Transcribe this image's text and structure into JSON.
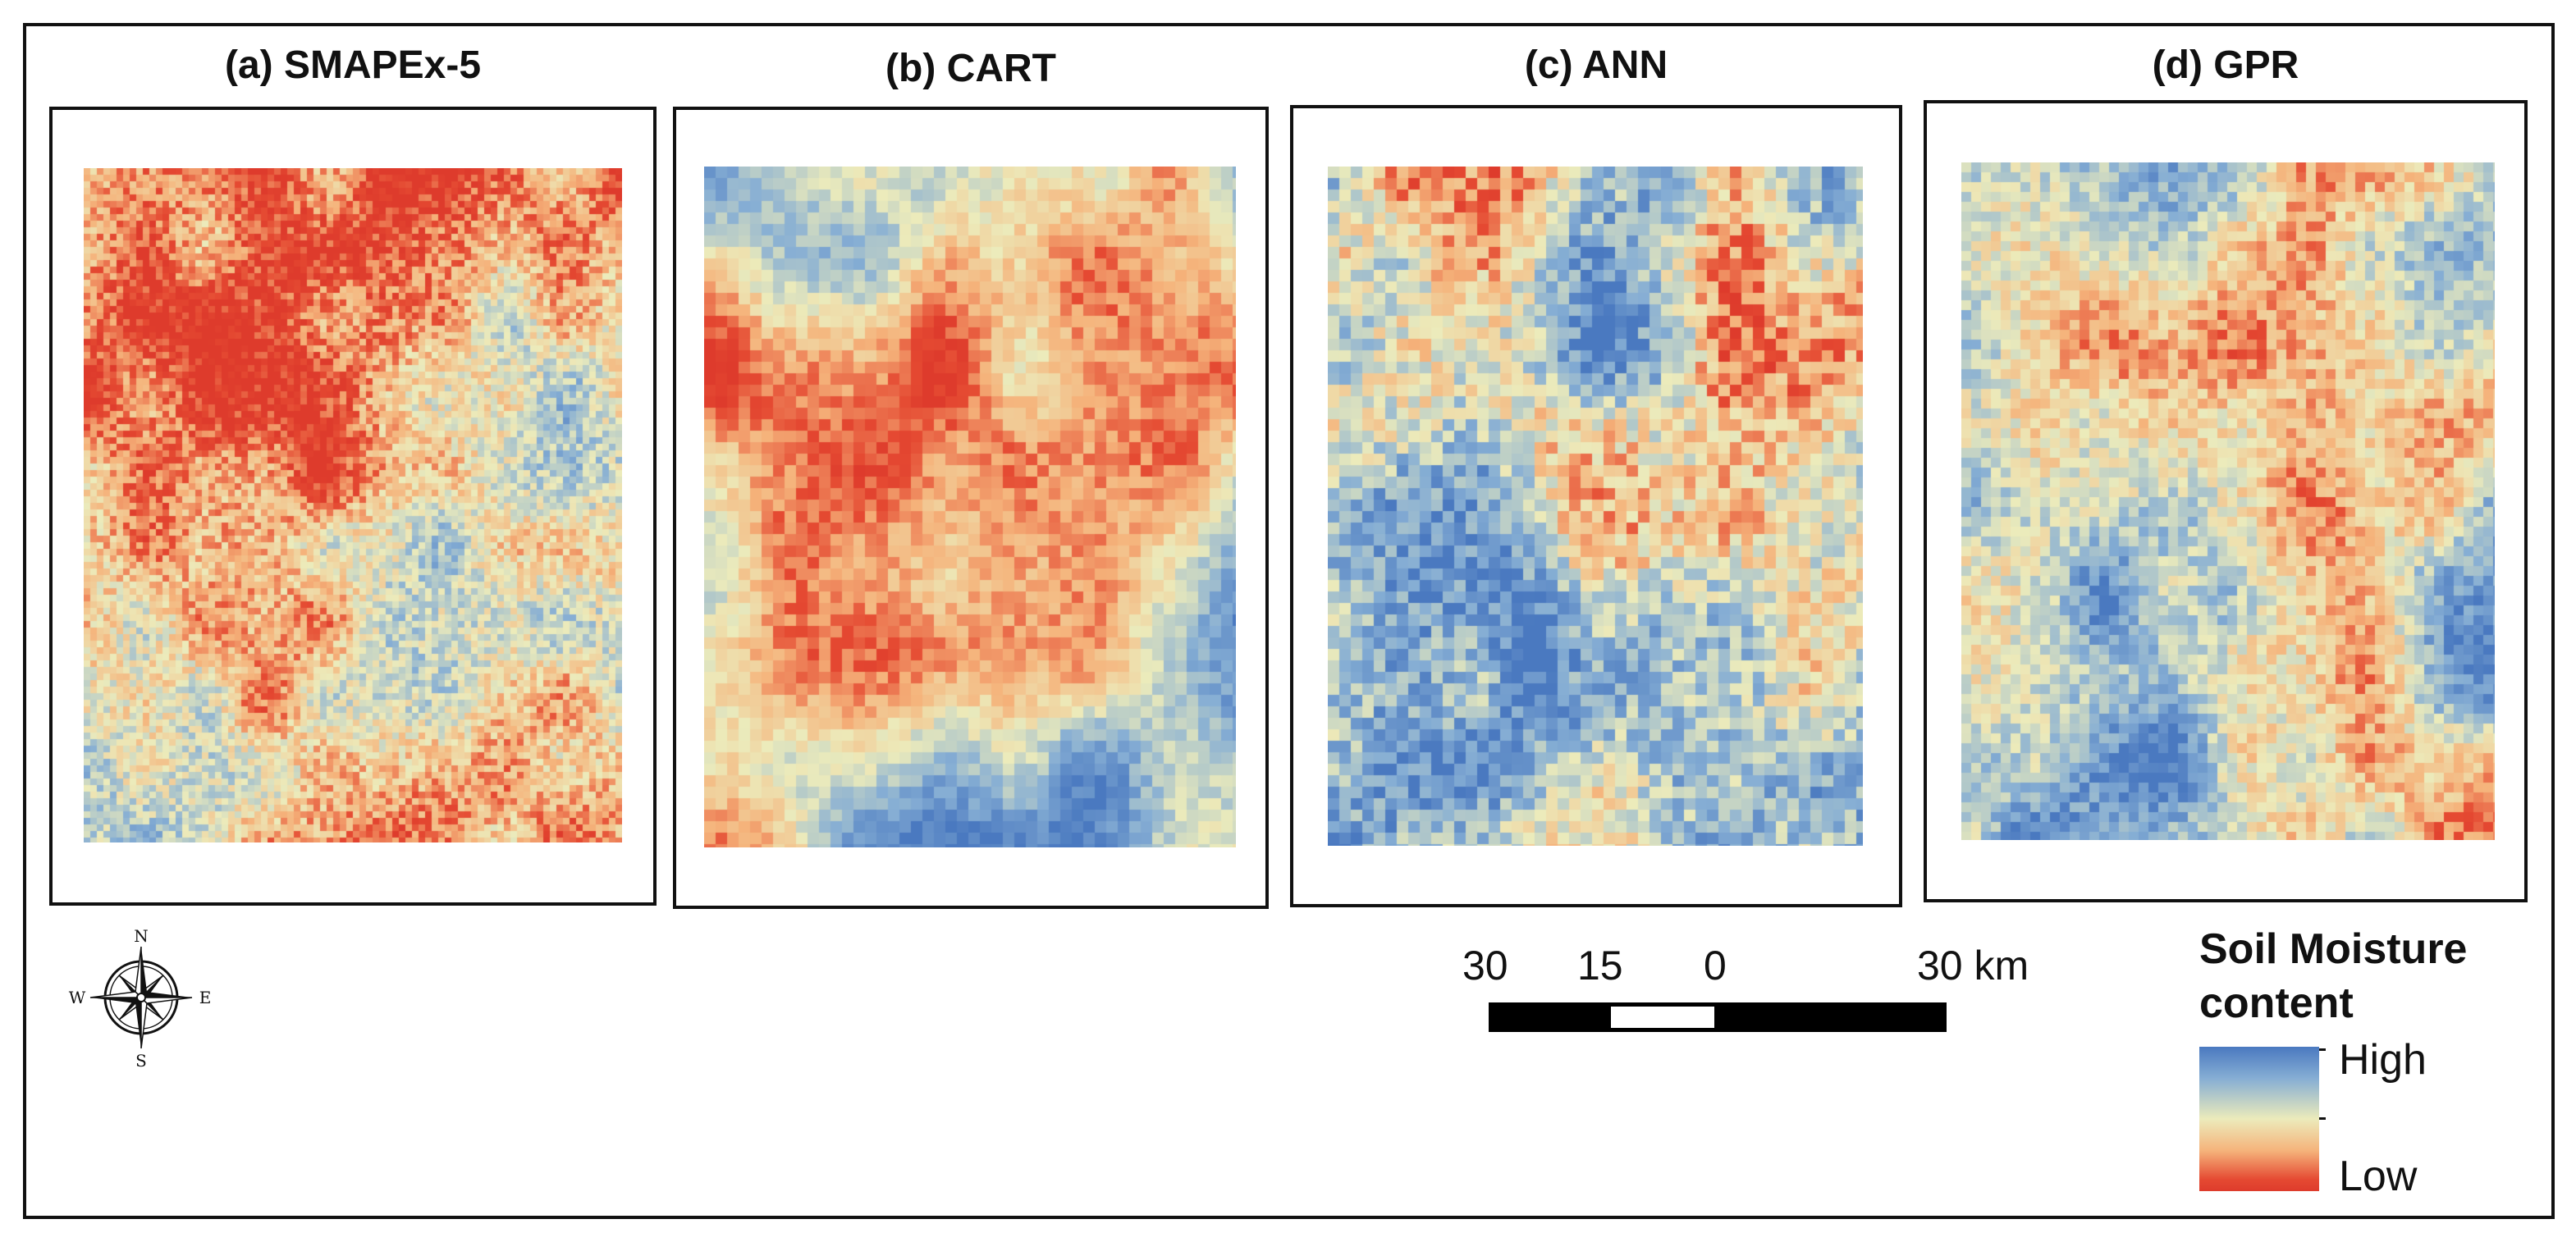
{
  "figure": {
    "panels": [
      {
        "id": "a",
        "title": "(a) SMAPEx-5",
        "seed": 11,
        "style": "fine"
      },
      {
        "id": "b",
        "title": "(b) CART",
        "seed": 23,
        "style": "cart"
      },
      {
        "id": "c",
        "title": "(c) ANN",
        "seed": 37,
        "style": "ann"
      },
      {
        "id": "d",
        "title": "(d) GPR",
        "seed": 51,
        "style": "gpr"
      }
    ],
    "compass": {
      "north": "N",
      "south": "S",
      "east": "E",
      "west": "W",
      "icon": "compass-rose-icon"
    },
    "scale_bar": {
      "labels": [
        "30",
        "15",
        "0",
        "30 km"
      ],
      "unit": "km"
    },
    "legend": {
      "title_line1": "Soil Moisture",
      "title_line2": "content",
      "high_label": "High",
      "low_label": "Low",
      "colors": {
        "high": "#4a79c0",
        "mid": "#ecebbb",
        "low": "#de3b2c"
      }
    }
  }
}
